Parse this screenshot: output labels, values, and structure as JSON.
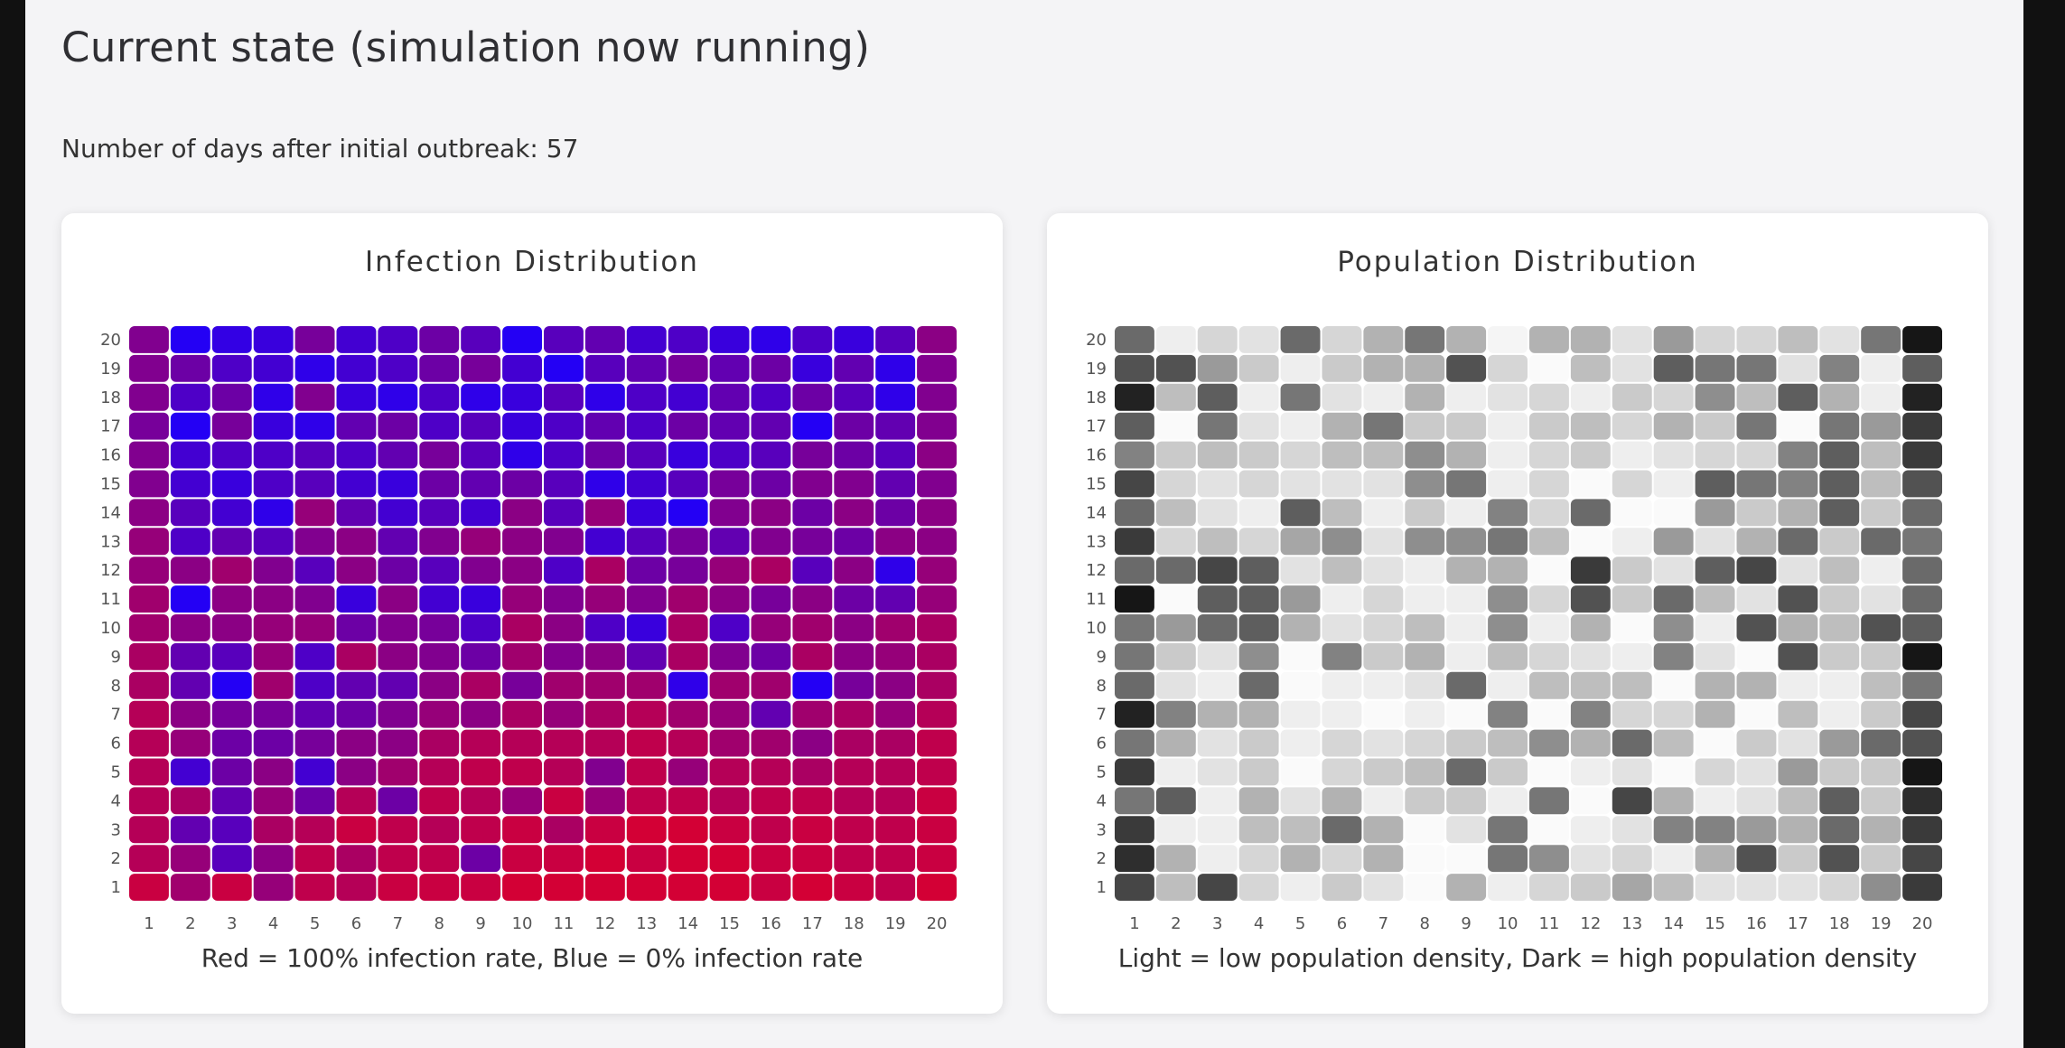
{
  "heading": "Current state (simulation now running)",
  "days_label": "Number of days after initial outbreak:",
  "days_value": "57",
  "colors": {
    "infected_high": "#e8001f",
    "infected_low": "#1a00ff",
    "population_light": "#fafafa",
    "population_dark": "#0a0a0a"
  },
  "chart_data": [
    {
      "type": "heatmap",
      "title": "Infection Distribution",
      "caption": "Red = 100% infection rate, Blue = 0% infection rate",
      "x_ticks": [
        "1",
        "2",
        "3",
        "4",
        "5",
        "6",
        "7",
        "8",
        "9",
        "10",
        "11",
        "12",
        "13",
        "14",
        "15",
        "16",
        "17",
        "18",
        "19",
        "20"
      ],
      "y_ticks": [
        "20",
        "19",
        "18",
        "17",
        "16",
        "15",
        "14",
        "13",
        "12",
        "11",
        "10",
        "9",
        "8",
        "7",
        "6",
        "5",
        "4",
        "3",
        "2",
        "1"
      ],
      "value_scale": "infection rate 0 (blue) to 1 (red)",
      "rows_top_to_bottom": [
        [
          0.5,
          0.05,
          0.12,
          0.15,
          0.45,
          0.2,
          0.25,
          0.4,
          0.3,
          0.05,
          0.3,
          0.35,
          0.2,
          0.25,
          0.15,
          0.1,
          0.25,
          0.15,
          0.3,
          0.55
        ],
        [
          0.5,
          0.4,
          0.25,
          0.2,
          0.1,
          0.2,
          0.25,
          0.4,
          0.45,
          0.2,
          0.05,
          0.3,
          0.35,
          0.45,
          0.35,
          0.4,
          0.15,
          0.35,
          0.1,
          0.5
        ],
        [
          0.5,
          0.25,
          0.4,
          0.1,
          0.5,
          0.15,
          0.1,
          0.25,
          0.1,
          0.15,
          0.3,
          0.1,
          0.25,
          0.2,
          0.35,
          0.25,
          0.4,
          0.3,
          0.1,
          0.5
        ],
        [
          0.45,
          0.05,
          0.45,
          0.15,
          0.1,
          0.35,
          0.4,
          0.25,
          0.3,
          0.15,
          0.25,
          0.35,
          0.25,
          0.4,
          0.35,
          0.35,
          0.05,
          0.4,
          0.35,
          0.5
        ],
        [
          0.5,
          0.2,
          0.25,
          0.25,
          0.3,
          0.25,
          0.35,
          0.45,
          0.3,
          0.1,
          0.25,
          0.4,
          0.3,
          0.15,
          0.25,
          0.3,
          0.45,
          0.4,
          0.3,
          0.55
        ],
        [
          0.5,
          0.2,
          0.15,
          0.25,
          0.3,
          0.2,
          0.15,
          0.4,
          0.35,
          0.4,
          0.3,
          0.1,
          0.2,
          0.3,
          0.45,
          0.4,
          0.5,
          0.5,
          0.35,
          0.5
        ],
        [
          0.55,
          0.3,
          0.2,
          0.1,
          0.6,
          0.35,
          0.2,
          0.3,
          0.2,
          0.55,
          0.3,
          0.6,
          0.15,
          0.05,
          0.5,
          0.55,
          0.4,
          0.55,
          0.4,
          0.55
        ],
        [
          0.6,
          0.25,
          0.35,
          0.3,
          0.5,
          0.55,
          0.35,
          0.5,
          0.6,
          0.55,
          0.5,
          0.2,
          0.3,
          0.45,
          0.35,
          0.5,
          0.45,
          0.4,
          0.55,
          0.55
        ],
        [
          0.6,
          0.55,
          0.65,
          0.5,
          0.3,
          0.55,
          0.4,
          0.3,
          0.5,
          0.55,
          0.25,
          0.7,
          0.4,
          0.45,
          0.6,
          0.7,
          0.3,
          0.55,
          0.1,
          0.6
        ],
        [
          0.65,
          0.05,
          0.55,
          0.55,
          0.5,
          0.15,
          0.55,
          0.2,
          0.15,
          0.6,
          0.5,
          0.6,
          0.5,
          0.65,
          0.55,
          0.45,
          0.55,
          0.4,
          0.35,
          0.6
        ],
        [
          0.65,
          0.55,
          0.55,
          0.6,
          0.6,
          0.4,
          0.5,
          0.45,
          0.25,
          0.7,
          0.55,
          0.25,
          0.15,
          0.7,
          0.25,
          0.6,
          0.65,
          0.55,
          0.65,
          0.7
        ],
        [
          0.7,
          0.35,
          0.3,
          0.6,
          0.25,
          0.7,
          0.55,
          0.5,
          0.4,
          0.65,
          0.5,
          0.55,
          0.35,
          0.7,
          0.5,
          0.4,
          0.7,
          0.55,
          0.6,
          0.7
        ],
        [
          0.7,
          0.35,
          0.05,
          0.65,
          0.25,
          0.35,
          0.35,
          0.55,
          0.7,
          0.45,
          0.65,
          0.65,
          0.65,
          0.1,
          0.65,
          0.65,
          0.05,
          0.45,
          0.55,
          0.7
        ],
        [
          0.75,
          0.55,
          0.45,
          0.45,
          0.35,
          0.4,
          0.5,
          0.6,
          0.55,
          0.7,
          0.6,
          0.7,
          0.75,
          0.65,
          0.6,
          0.35,
          0.65,
          0.7,
          0.6,
          0.75
        ],
        [
          0.75,
          0.6,
          0.4,
          0.4,
          0.45,
          0.55,
          0.55,
          0.7,
          0.75,
          0.75,
          0.75,
          0.75,
          0.8,
          0.75,
          0.65,
          0.65,
          0.55,
          0.7,
          0.7,
          0.8
        ],
        [
          0.75,
          0.2,
          0.4,
          0.55,
          0.2,
          0.55,
          0.65,
          0.75,
          0.8,
          0.8,
          0.75,
          0.5,
          0.8,
          0.6,
          0.75,
          0.75,
          0.7,
          0.75,
          0.75,
          0.8
        ],
        [
          0.75,
          0.7,
          0.35,
          0.6,
          0.4,
          0.75,
          0.4,
          0.8,
          0.75,
          0.6,
          0.85,
          0.6,
          0.8,
          0.8,
          0.75,
          0.8,
          0.8,
          0.75,
          0.75,
          0.85
        ],
        [
          0.75,
          0.35,
          0.3,
          0.7,
          0.75,
          0.85,
          0.8,
          0.75,
          0.8,
          0.85,
          0.7,
          0.85,
          0.9,
          0.9,
          0.85,
          0.8,
          0.85,
          0.8,
          0.8,
          0.85
        ],
        [
          0.75,
          0.6,
          0.3,
          0.55,
          0.8,
          0.7,
          0.8,
          0.8,
          0.4,
          0.85,
          0.85,
          0.9,
          0.85,
          0.9,
          0.9,
          0.85,
          0.85,
          0.8,
          0.8,
          0.85
        ],
        [
          0.85,
          0.65,
          0.85,
          0.6,
          0.8,
          0.75,
          0.85,
          0.85,
          0.85,
          0.9,
          0.9,
          0.9,
          0.9,
          0.9,
          0.9,
          0.85,
          0.9,
          0.85,
          0.8,
          0.9
        ]
      ]
    },
    {
      "type": "heatmap",
      "title": "Population Distribution",
      "caption": "Light = low population density, Dark = high population density",
      "x_ticks": [
        "1",
        "2",
        "3",
        "4",
        "5",
        "6",
        "7",
        "8",
        "9",
        "10",
        "11",
        "12",
        "13",
        "14",
        "15",
        "16",
        "17",
        "18",
        "19",
        "20"
      ],
      "y_ticks": [
        "20",
        "19",
        "18",
        "17",
        "16",
        "15",
        "14",
        "13",
        "12",
        "11",
        "10",
        "9",
        "8",
        "7",
        "6",
        "5",
        "4",
        "3",
        "2",
        "1"
      ],
      "value_scale": "population density 0 (light) to 1 (dark)",
      "rows_top_to_bottom": [
        [
          0.6,
          0.05,
          0.15,
          0.1,
          0.6,
          0.15,
          0.3,
          0.55,
          0.3,
          0.02,
          0.3,
          0.3,
          0.1,
          0.4,
          0.15,
          0.15,
          0.25,
          0.1,
          0.55,
          0.95
        ],
        [
          0.7,
          0.7,
          0.4,
          0.2,
          0.05,
          0.2,
          0.3,
          0.3,
          0.7,
          0.15,
          0.0,
          0.25,
          0.1,
          0.65,
          0.55,
          0.55,
          0.1,
          0.5,
          0.05,
          0.65
        ],
        [
          0.9,
          0.25,
          0.65,
          0.05,
          0.55,
          0.1,
          0.05,
          0.3,
          0.05,
          0.1,
          0.15,
          0.05,
          0.2,
          0.15,
          0.45,
          0.25,
          0.65,
          0.3,
          0.05,
          0.9
        ],
        [
          0.65,
          0.0,
          0.55,
          0.1,
          0.05,
          0.3,
          0.55,
          0.2,
          0.2,
          0.05,
          0.2,
          0.25,
          0.15,
          0.3,
          0.2,
          0.55,
          0.0,
          0.55,
          0.4,
          0.8
        ],
        [
          0.5,
          0.2,
          0.25,
          0.2,
          0.15,
          0.25,
          0.25,
          0.45,
          0.3,
          0.05,
          0.15,
          0.2,
          0.05,
          0.1,
          0.15,
          0.15,
          0.5,
          0.65,
          0.25,
          0.8
        ],
        [
          0.75,
          0.15,
          0.1,
          0.15,
          0.1,
          0.1,
          0.1,
          0.45,
          0.55,
          0.05,
          0.15,
          0.0,
          0.15,
          0.05,
          0.65,
          0.55,
          0.5,
          0.65,
          0.25,
          0.7
        ],
        [
          0.6,
          0.25,
          0.1,
          0.05,
          0.65,
          0.25,
          0.05,
          0.2,
          0.05,
          0.5,
          0.15,
          0.6,
          0.0,
          0.0,
          0.4,
          0.2,
          0.3,
          0.65,
          0.2,
          0.6
        ],
        [
          0.8,
          0.15,
          0.25,
          0.15,
          0.35,
          0.45,
          0.1,
          0.45,
          0.45,
          0.55,
          0.25,
          0.0,
          0.05,
          0.4,
          0.1,
          0.3,
          0.6,
          0.2,
          0.6,
          0.55
        ],
        [
          0.6,
          0.6,
          0.75,
          0.65,
          0.1,
          0.25,
          0.1,
          0.05,
          0.3,
          0.3,
          0.0,
          0.8,
          0.2,
          0.1,
          0.65,
          0.75,
          0.1,
          0.25,
          0.05,
          0.6
        ],
        [
          0.95,
          0.0,
          0.65,
          0.65,
          0.4,
          0.05,
          0.15,
          0.05,
          0.05,
          0.45,
          0.15,
          0.7,
          0.2,
          0.6,
          0.25,
          0.1,
          0.7,
          0.2,
          0.1,
          0.6
        ],
        [
          0.55,
          0.4,
          0.6,
          0.65,
          0.3,
          0.1,
          0.15,
          0.25,
          0.05,
          0.45,
          0.05,
          0.3,
          0.0,
          0.45,
          0.05,
          0.7,
          0.3,
          0.25,
          0.7,
          0.65
        ],
        [
          0.55,
          0.2,
          0.1,
          0.45,
          0.0,
          0.5,
          0.2,
          0.3,
          0.05,
          0.25,
          0.15,
          0.1,
          0.05,
          0.5,
          0.1,
          0.0,
          0.7,
          0.2,
          0.2,
          0.95
        ],
        [
          0.6,
          0.1,
          0.05,
          0.6,
          0.0,
          0.05,
          0.05,
          0.1,
          0.6,
          0.05,
          0.25,
          0.25,
          0.25,
          0.0,
          0.3,
          0.3,
          0.05,
          0.05,
          0.25,
          0.55
        ],
        [
          0.9,
          0.5,
          0.3,
          0.3,
          0.05,
          0.05,
          0.0,
          0.05,
          0.0,
          0.5,
          0.0,
          0.5,
          0.15,
          0.15,
          0.3,
          0.0,
          0.25,
          0.05,
          0.2,
          0.75
        ],
        [
          0.55,
          0.3,
          0.1,
          0.2,
          0.05,
          0.15,
          0.1,
          0.15,
          0.2,
          0.25,
          0.45,
          0.3,
          0.6,
          0.25,
          0.0,
          0.2,
          0.1,
          0.4,
          0.6,
          0.7
        ],
        [
          0.8,
          0.05,
          0.1,
          0.2,
          0.0,
          0.15,
          0.2,
          0.25,
          0.6,
          0.2,
          0.0,
          0.05,
          0.1,
          0.0,
          0.15,
          0.1,
          0.4,
          0.2,
          0.2,
          0.95
        ],
        [
          0.55,
          0.65,
          0.05,
          0.3,
          0.1,
          0.3,
          0.05,
          0.2,
          0.2,
          0.05,
          0.55,
          0.0,
          0.75,
          0.3,
          0.05,
          0.1,
          0.25,
          0.65,
          0.2,
          0.85
        ],
        [
          0.8,
          0.05,
          0.05,
          0.25,
          0.25,
          0.6,
          0.3,
          0.0,
          0.1,
          0.55,
          0.0,
          0.05,
          0.1,
          0.5,
          0.5,
          0.4,
          0.3,
          0.6,
          0.3,
          0.8
        ],
        [
          0.85,
          0.3,
          0.05,
          0.15,
          0.3,
          0.15,
          0.3,
          0.0,
          0.0,
          0.55,
          0.45,
          0.1,
          0.15,
          0.05,
          0.3,
          0.7,
          0.2,
          0.7,
          0.2,
          0.75
        ],
        [
          0.75,
          0.25,
          0.75,
          0.15,
          0.05,
          0.2,
          0.1,
          0.0,
          0.3,
          0.05,
          0.15,
          0.2,
          0.35,
          0.25,
          0.1,
          0.1,
          0.1,
          0.15,
          0.45,
          0.8
        ]
      ]
    }
  ]
}
